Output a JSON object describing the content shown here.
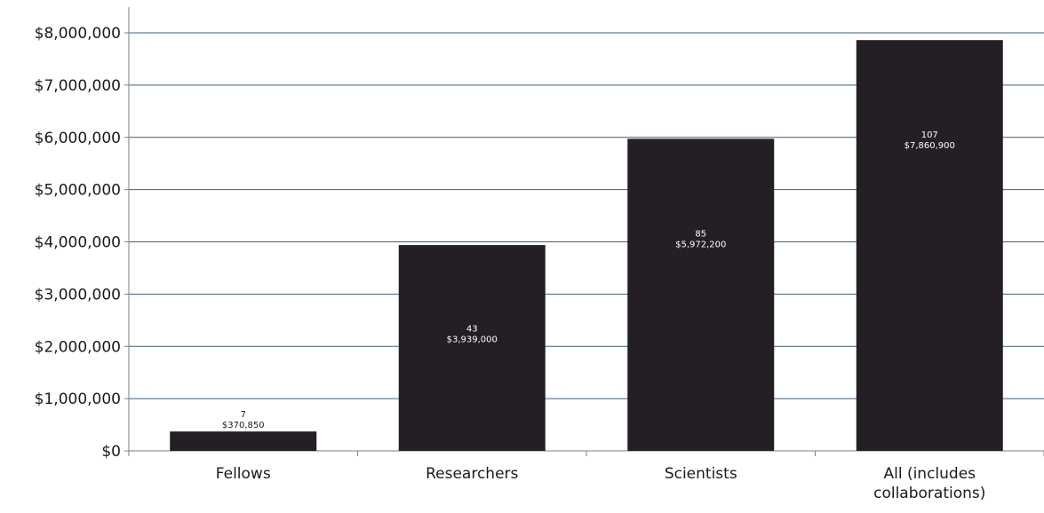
{
  "chart_data": {
    "type": "bar",
    "title": "",
    "xlabel": "",
    "ylabel": "",
    "categories": [
      [
        "Fellows"
      ],
      [
        "Researchers"
      ],
      [
        "Scientists"
      ],
      [
        "All (includes",
        "collaborations)"
      ]
    ],
    "values": [
      370850,
      3939000,
      5972200,
      7860900
    ],
    "data_labels": [
      {
        "count": "7",
        "amount": "$370,850"
      },
      {
        "count": "43",
        "amount": "$3,939,000"
      },
      {
        "count": "85",
        "amount": "$5,972,200"
      },
      {
        "count": "107",
        "amount": "$7,860,900"
      }
    ],
    "ylim": [
      0,
      8000000
    ],
    "y_ticks": [
      0,
      1000000,
      2000000,
      3000000,
      4000000,
      5000000,
      6000000,
      7000000,
      8000000
    ],
    "y_tick_labels": [
      "$0",
      "$1,000,000",
      "$2,000,000",
      "$3,000,000",
      "$4,000,000",
      "$5,000,000",
      "$6,000,000",
      "$7,000,000",
      "$8,000,000"
    ],
    "grid": true,
    "legend": "none",
    "colors": {
      "bar": "#241e25",
      "grid": "#3f5f7f",
      "axis": "#7f7f7f",
      "label_inside": "#ffffff",
      "label_outside": "#1a1a1a"
    }
  }
}
